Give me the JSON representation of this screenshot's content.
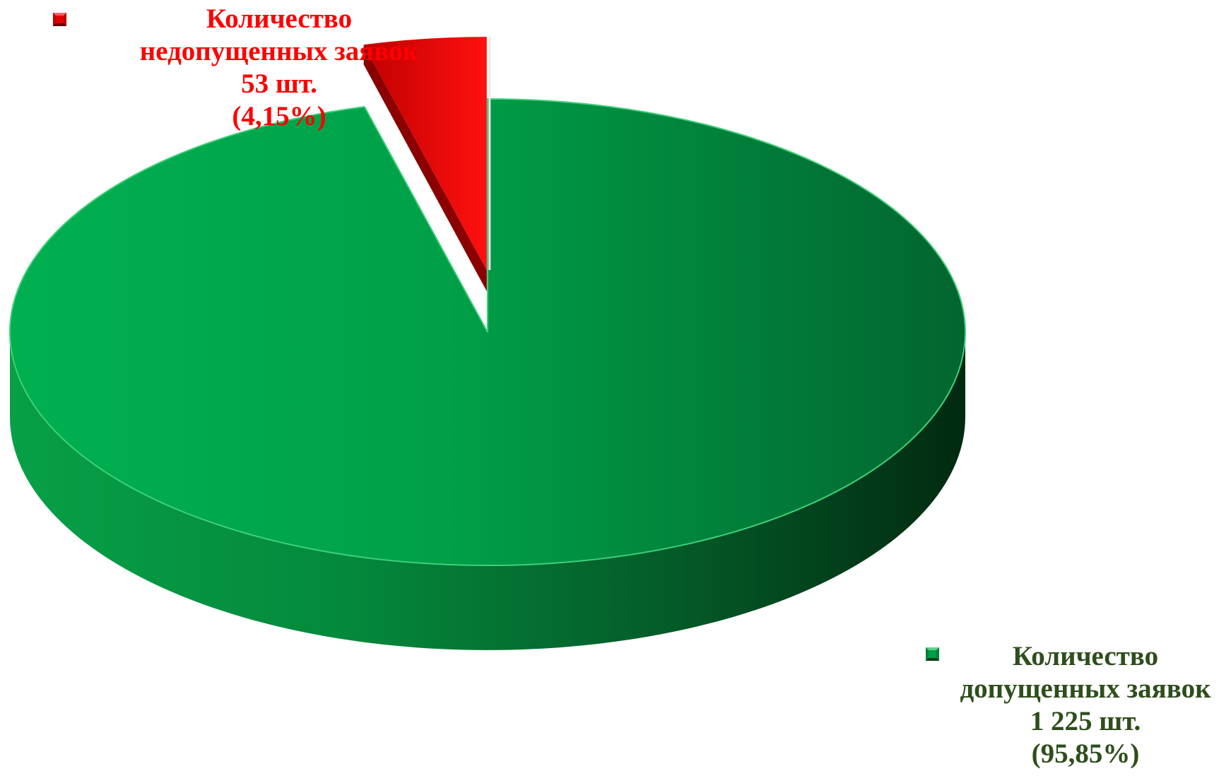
{
  "chart_data": {
    "type": "pie",
    "style": "3d-exploded",
    "slices": [
      {
        "key": "rejected",
        "label_lines": [
          "Количество",
          "недопущенных заявок",
          "53 шт.",
          "(4,15%)"
        ],
        "label": "Количество недопущенных заявок",
        "value": 53,
        "value_text": "53 шт.",
        "percent": 4.15,
        "percent_text": "(4,15%)",
        "color": "#ff0000",
        "dark_color": "#8b0000",
        "exploded": true
      },
      {
        "key": "admitted",
        "label_lines": [
          "Количество",
          "допущенных заявок",
          "1 225 шт.",
          "(95,85%)"
        ],
        "label": "Количество допущенных заявок",
        "value": 1225,
        "value_text": "1 225 шт.",
        "percent": 95.85,
        "percent_text": "(95,85%)",
        "color": "#00b050",
        "dark_color": "#0a3a1c",
        "exploded": false
      }
    ]
  },
  "label_colors": {
    "rejected": "#ff0000",
    "admitted": "#2e4e1c"
  }
}
